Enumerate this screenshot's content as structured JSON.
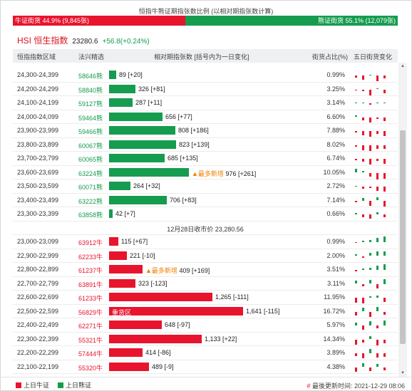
{
  "top": {
    "title": "恒指牛熊证期指张数比例 (以相对期指张数计算)",
    "bull_label": "牛证街货 44.9% (9,845张)",
    "bear_label": "熊证街货 55.1% (12,079张)",
    "bull_fraction": 0.449,
    "colors": {
      "bull": "#e8142d",
      "bear": "#169c4f"
    }
  },
  "index": {
    "name": "HSI 恒生指数",
    "value": "23280.6",
    "change": "+56.8(+0.24%)"
  },
  "header": {
    "range": "恒指指数区域",
    "code": "法兴精选",
    "contracts": "相对期指张数 [括号内为一日变化]",
    "pct": "街货占比(%)",
    "spark": "五日街货变化"
  },
  "close_label": "12月28日收市价 23,280.56",
  "rows": [
    {
      "type": "bear",
      "range": "24,300-24,399",
      "code": "58646熊",
      "value": 89,
      "text": "89 [+20]",
      "pct": "0.99%",
      "tag": "",
      "spark": [
        -4,
        -9,
        2,
        -12,
        -5
      ]
    },
    {
      "type": "bear",
      "range": "24,200-24,299",
      "code": "58840熊",
      "value": 326,
      "text": "326 [+81]",
      "pct": "3.25%",
      "tag": "",
      "spark": [
        -2,
        -4,
        -12,
        2,
        -8
      ]
    },
    {
      "type": "bear",
      "range": "24,100-24,199",
      "code": "59127熊",
      "value": 287,
      "text": "287 [+11]",
      "pct": "3.14%",
      "tag": "",
      "spark": [
        1,
        2,
        -3,
        2,
        2
      ]
    },
    {
      "type": "bear",
      "range": "24,000-24,099",
      "code": "59464熊",
      "value": 656,
      "text": "656 [+77]",
      "pct": "6.60%",
      "tag": "",
      "spark": [
        3,
        -6,
        -10,
        -4,
        -8
      ]
    },
    {
      "type": "bear",
      "range": "23,900-23,999",
      "code": "59466熊",
      "value": 808,
      "text": "808 [+186]",
      "pct": "7.88%",
      "tag": "",
      "spark": [
        -3,
        -8,
        -12,
        -6,
        -10
      ]
    },
    {
      "type": "bear",
      "range": "23,800-23,899",
      "code": "60067熊",
      "value": 823,
      "text": "823 [+139]",
      "pct": "8.02%",
      "tag": "",
      "spark": [
        -4,
        -10,
        -12,
        -8,
        -8
      ]
    },
    {
      "type": "bear",
      "range": "23,700-23,799",
      "code": "60065熊",
      "value": 685,
      "text": "685 [+135]",
      "pct": "6.74%",
      "tag": "",
      "spark": [
        -3,
        -6,
        -12,
        -4,
        -10
      ]
    },
    {
      "type": "bear",
      "range": "23,600-23,699",
      "code": "63224熊",
      "value": 976,
      "text": "976 [+261]",
      "pct": "10.05%",
      "tag": "▲最多新增",
      "spark": [
        8,
        4,
        -8,
        -14,
        -12
      ]
    },
    {
      "type": "bear",
      "range": "23,500-23,599",
      "code": "60071熊",
      "value": 264,
      "text": "264 [+32]",
      "pct": "2.72%",
      "tag": "",
      "spark": [
        2,
        -4,
        -3,
        -8,
        -10
      ]
    },
    {
      "type": "bear",
      "range": "23,400-23,499",
      "code": "63222熊",
      "value": 706,
      "text": "706 [+83]",
      "pct": "7.14%",
      "tag": "",
      "spark": [
        -3,
        5,
        -10,
        6,
        -12
      ]
    },
    {
      "type": "bear",
      "range": "23,300-23,399",
      "code": "63858熊",
      "value": 42,
      "text": "42 [+7]",
      "pct": "0.66%",
      "tag": "",
      "spark": [
        3,
        -5,
        -8,
        4,
        -6
      ]
    },
    {
      "type": "bull",
      "range": "23,000-23,099",
      "code": "63912牛",
      "value": 115,
      "text": "115 [+67]",
      "pct": "0.99%",
      "tag": "",
      "spark": [
        -2,
        3,
        5,
        8,
        11
      ]
    },
    {
      "type": "bull",
      "range": "22,900-22,999",
      "code": "62233牛",
      "value": 221,
      "text": "221 [-10]",
      "pct": "2.00%",
      "tag": "",
      "spark": [
        3,
        -4,
        6,
        9,
        9
      ]
    },
    {
      "type": "bull",
      "range": "22,800-22,899",
      "code": "61237牛",
      "value": 409,
      "text": "409 [+169]",
      "pct": "3.51%",
      "tag": "▲最多新增",
      "spark": [
        -3,
        3,
        5,
        8,
        11
      ]
    },
    {
      "type": "bull",
      "range": "22,700-22,799",
      "code": "63891牛",
      "value": 323,
      "text": "323 [-123]",
      "pct": "3.11%",
      "tag": "",
      "spark": [
        6,
        -5,
        8,
        -9,
        10
      ]
    },
    {
      "type": "bull",
      "range": "22,600-22,699",
      "code": "61233牛",
      "value": 1265,
      "text": "1,265 [-111]",
      "pct": "11.95%",
      "tag": "",
      "spark": [
        -10,
        -12,
        3,
        4,
        -9
      ]
    },
    {
      "type": "bull",
      "range": "22,500-22,599",
      "code": "56829牛",
      "value": 1641,
      "text": "1,641 [-115]",
      "pct": "16.72%",
      "tag": "重货区",
      "spark": [
        -8,
        8,
        -10,
        9,
        -6
      ]
    },
    {
      "type": "bull",
      "range": "22,400-22,499",
      "code": "62271牛",
      "value": 648,
      "text": "648 [-97]",
      "pct": "5.97%",
      "tag": "",
      "spark": [
        6,
        -8,
        9,
        -6,
        10
      ]
    },
    {
      "type": "bull",
      "range": "22,300-22,399",
      "code": "55321牛",
      "value": 1133,
      "text": "1,133 [+22]",
      "pct": "14.34%",
      "tag": "",
      "spark": [
        -10,
        -7,
        6,
        -12,
        -8
      ]
    },
    {
      "type": "bull",
      "range": "22,200-22,299",
      "code": "57444牛",
      "value": 414,
      "text": "414 [-86]",
      "pct": "3.89%",
      "tag": "",
      "spark": [
        -5,
        -10,
        8,
        -9,
        -7
      ]
    },
    {
      "type": "bull",
      "range": "22,100-22,199",
      "code": "55320牛",
      "value": 489,
      "text": "489 [-9]",
      "pct": "4.38%",
      "tag": "",
      "spark": [
        -9,
        8,
        -8,
        6,
        -7
      ]
    }
  ],
  "legend": {
    "bull": "上日牛证",
    "bear": "上日熊证"
  },
  "updated": {
    "hash": "#",
    "text": "最後更新时间: 2021-12-29 08:06"
  }
}
